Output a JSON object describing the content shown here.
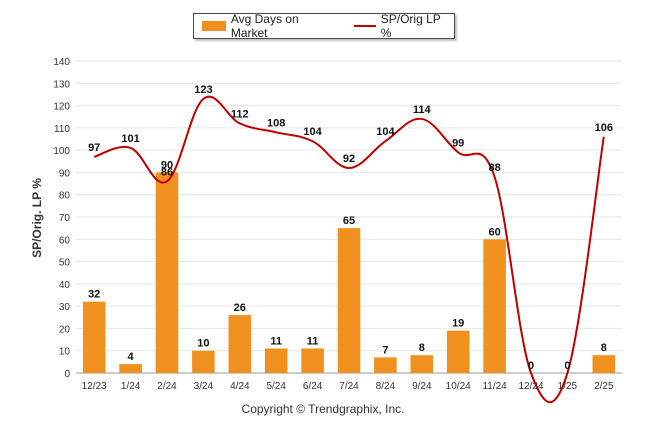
{
  "legend": {
    "bar_label": "Avg Days on Market",
    "line_label": "SP/Orig LP %"
  },
  "copyright": "Copyright © Trendgraphix, Inc.",
  "colors": {
    "bar": "#f0901e",
    "line": "#c00000"
  },
  "chart_data": {
    "type": "bar",
    "title": "",
    "xlabel": "",
    "ylabel": "SP/Orig. LP %",
    "ylim": [
      0,
      140
    ],
    "yticks": [
      0,
      10,
      20,
      30,
      40,
      50,
      60,
      70,
      80,
      90,
      100,
      110,
      120,
      130,
      140
    ],
    "grid": true,
    "legend_position": "top-center",
    "categories": [
      "12/23",
      "1/24",
      "2/24",
      "3/24",
      "4/24",
      "5/24",
      "6/24",
      "7/24",
      "8/24",
      "9/24",
      "10/24",
      "11/24",
      "12/24",
      "1/25",
      "2/25"
    ],
    "series": [
      {
        "name": "Avg Days on Market",
        "type": "bar",
        "values": [
          32,
          4,
          90,
          10,
          26,
          11,
          11,
          65,
          7,
          8,
          19,
          60,
          0,
          0,
          8
        ]
      },
      {
        "name": "SP/Orig LP %",
        "type": "line",
        "values": [
          97,
          101,
          86,
          123,
          112,
          108,
          104,
          92,
          104,
          114,
          99,
          88,
          0,
          0,
          106
        ]
      }
    ]
  }
}
